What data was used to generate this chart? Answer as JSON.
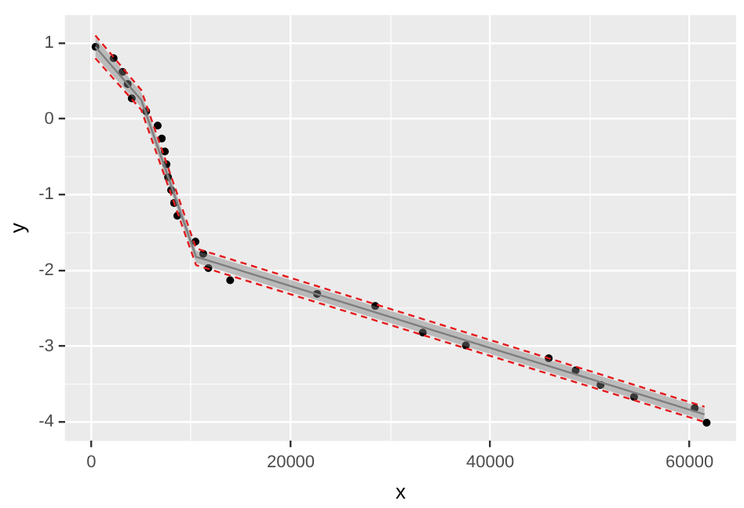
{
  "chart_data": {
    "type": "scatter",
    "xlabel": "x",
    "ylabel": "y",
    "xlim": [
      -2650,
      64670
    ],
    "ylim": [
      -4.25,
      1.37
    ],
    "xticks": [
      0,
      {
        "value": 10000,
        "label": null
      },
      20000,
      {
        "value": 30000,
        "label": null
      },
      40000,
      {
        "value": 50000,
        "label": null
      },
      60000
    ],
    "yticks": [
      -4,
      {
        "value": -3.5,
        "label": null
      },
      -3,
      {
        "value": -2.5,
        "label": null
      },
      -2,
      {
        "value": -1.5,
        "label": null
      },
      -1,
      {
        "value": -0.5,
        "label": null
      },
      0,
      {
        "value": 0.5,
        "label": null
      },
      1
    ],
    "grid": true,
    "legend": false,
    "series": [
      {
        "type": "line",
        "color": "#7f7f7f",
        "x": [
          400,
          5000,
          10500,
          61500
        ],
        "values": [
          0.95,
          0.25,
          -1.82,
          -3.9
        ],
        "lower": [
          0.83,
          0.15,
          -1.9,
          -3.98
        ],
        "upper": [
          1.07,
          0.35,
          -1.74,
          -3.82
        ]
      },
      {
        "type": "line",
        "color": "#e41a1c",
        "line_style": "dashed",
        "x": [
          400,
          5000,
          10500,
          61500
        ],
        "values": [
          0.8,
          0.12,
          -1.93,
          -4.0
        ]
      },
      {
        "type": "line",
        "color": "#e41a1c",
        "line_style": "dashed",
        "x": [
          400,
          5000,
          10500,
          61500
        ],
        "values": [
          1.1,
          0.38,
          -1.71,
          -3.8
        ]
      },
      {
        "color": "#000000",
        "marker": "circle",
        "x": [
          420,
          2230,
          3120,
          3640,
          4050,
          5500,
          6650,
          7060,
          7370,
          7530,
          7690,
          8000,
          8300,
          8620,
          10440,
          11220,
          11730,
          13920,
          22640,
          28470,
          33240,
          37560,
          45870,
          48570,
          51070,
          54430,
          60510,
          61710
        ],
        "values": [
          0.95,
          0.8,
          0.62,
          0.46,
          0.27,
          0.1,
          -0.09,
          -0.26,
          -0.43,
          -0.6,
          -0.77,
          -0.94,
          -1.11,
          -1.28,
          -1.62,
          -1.78,
          -1.97,
          -2.13,
          -2.31,
          -2.47,
          -2.82,
          -2.99,
          -3.16,
          -3.32,
          -3.51,
          -3.67,
          -3.82,
          -4.01
        ]
      }
    ]
  }
}
